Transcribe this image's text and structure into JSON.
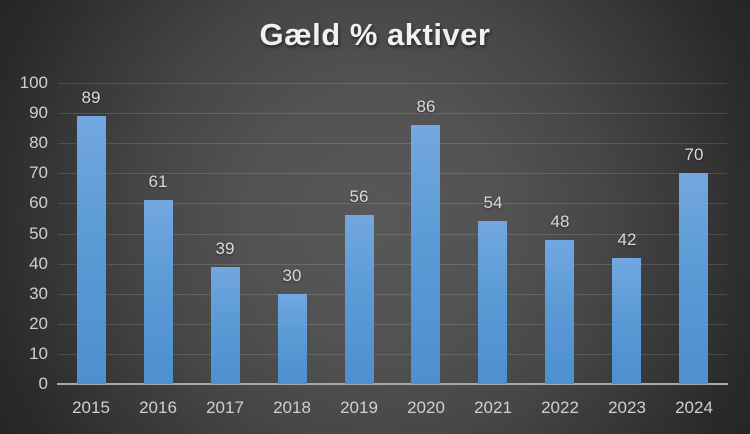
{
  "chart_data": {
    "type": "bar",
    "title": "Gæld % aktiver",
    "categories": [
      "2015",
      "2016",
      "2017",
      "2018",
      "2019",
      "2020",
      "2021",
      "2022",
      "2023",
      "2024"
    ],
    "values": [
      89,
      61,
      39,
      30,
      56,
      86,
      54,
      48,
      42,
      70
    ],
    "xlabel": "",
    "ylabel": "",
    "ylim": [
      0,
      100
    ],
    "yticks": [
      0,
      10,
      20,
      30,
      40,
      50,
      60,
      70,
      80,
      90,
      100
    ],
    "grid": true,
    "legend": false,
    "data_labels": true,
    "colors": {
      "bar_top": "#73a7e0",
      "bar_mid": "#5b9bd5",
      "bar_bottom": "#4d8fd0",
      "title_text": "#f0f0f0",
      "tick_text": "#cfcfcf",
      "value_label_text": "#d9d9d9",
      "axis_line": "#a8a8a8",
      "gridline": "rgba(255,255,255,0.13)",
      "background_center": "#585858",
      "background_corner": "#262626"
    }
  }
}
